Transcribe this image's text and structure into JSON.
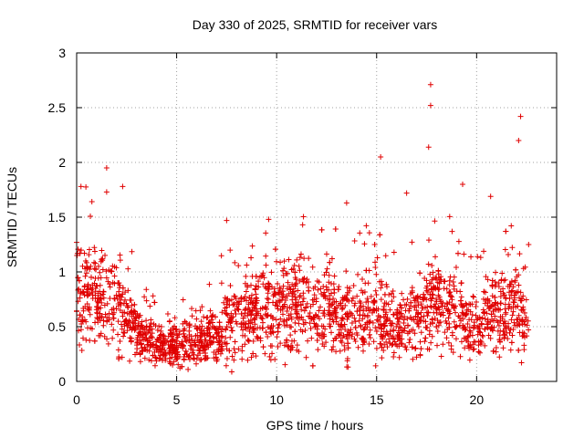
{
  "chart_data": {
    "type": "scatter",
    "title": "Day 330 of 2025, SRMTID for receiver vars",
    "xlabel": "GPS time / hours",
    "ylabel": "SRMTID / TECUs",
    "xlim": [
      0,
      24
    ],
    "ylim": [
      0,
      3
    ],
    "x_ticks": [
      0,
      5,
      10,
      15,
      20
    ],
    "x_tick_labels": [
      "0",
      "5",
      "10",
      "15",
      "20"
    ],
    "y_ticks": [
      0,
      0.5,
      1,
      1.5,
      2,
      2.5,
      3
    ],
    "y_tick_labels": [
      "0",
      "0.5",
      "1",
      "1.5",
      "2",
      "2.5",
      "3"
    ],
    "grid": true,
    "marker": "+",
    "series_color": "#e00000",
    "x_range_of_data": [
      0,
      22.6
    ],
    "mean_profile": {
      "x": [
        0,
        1,
        2,
        3,
        4,
        5,
        6,
        7,
        8,
        9,
        10,
        11,
        12,
        13,
        14,
        15,
        16,
        17,
        18,
        19,
        20,
        21,
        22,
        22.6
      ],
      "y": [
        0.8,
        0.75,
        0.7,
        0.45,
        0.35,
        0.32,
        0.33,
        0.45,
        0.6,
        0.65,
        0.7,
        0.7,
        0.65,
        0.6,
        0.55,
        0.65,
        0.5,
        0.55,
        0.75,
        0.6,
        0.5,
        0.65,
        0.65,
        0.4
      ]
    },
    "notable_points": [
      {
        "x": 0.0,
        "y": 1.27
      },
      {
        "x": 1.5,
        "y": 1.95
      },
      {
        "x": 1.5,
        "y": 1.73
      },
      {
        "x": 2.3,
        "y": 1.78
      },
      {
        "x": 7.5,
        "y": 1.47
      },
      {
        "x": 9.6,
        "y": 1.48
      },
      {
        "x": 11.3,
        "y": 1.43
      },
      {
        "x": 13.5,
        "y": 1.63
      },
      {
        "x": 15.2,
        "y": 2.05
      },
      {
        "x": 16.5,
        "y": 1.72
      },
      {
        "x": 17.7,
        "y": 2.71
      },
      {
        "x": 17.7,
        "y": 2.52
      },
      {
        "x": 17.6,
        "y": 2.14
      },
      {
        "x": 19.3,
        "y": 1.8
      },
      {
        "x": 20.7,
        "y": 1.69
      },
      {
        "x": 22.2,
        "y": 2.42
      },
      {
        "x": 22.1,
        "y": 2.2
      },
      {
        "x": 22.6,
        "y": 1.25
      }
    ]
  }
}
